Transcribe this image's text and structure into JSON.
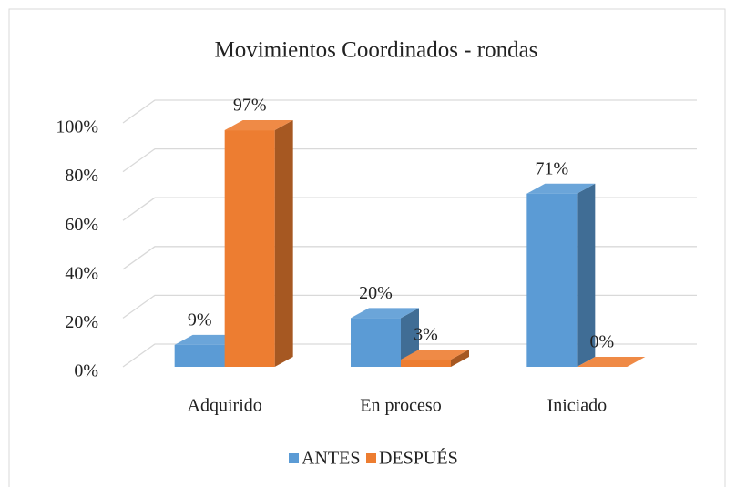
{
  "chart_data": {
    "type": "bar3d",
    "title": "Movimientos Coordinados - rondas",
    "categories": [
      "Adquirido",
      "En proceso",
      "Iniciado"
    ],
    "series": [
      {
        "name": "ANTES",
        "color": "#5b9bd5",
        "values": [
          9,
          20,
          71
        ],
        "value_labels": [
          "9%",
          "20%",
          "71%"
        ]
      },
      {
        "name": "DESPUÉS",
        "color": "#ed7d31",
        "values": [
          97,
          3,
          0
        ],
        "value_labels": [
          "97%",
          "3%",
          "0%"
        ]
      }
    ],
    "ylim": [
      0,
      100
    ],
    "yticks": [
      {
        "value": 0,
        "label": "0%"
      },
      {
        "value": 20,
        "label": "20%"
      },
      {
        "value": 40,
        "label": "40%"
      },
      {
        "value": 60,
        "label": "60%"
      },
      {
        "value": 80,
        "label": "80%"
      },
      {
        "value": 100,
        "label": "100%"
      }
    ],
    "grid": true,
    "legend": "bottom"
  }
}
